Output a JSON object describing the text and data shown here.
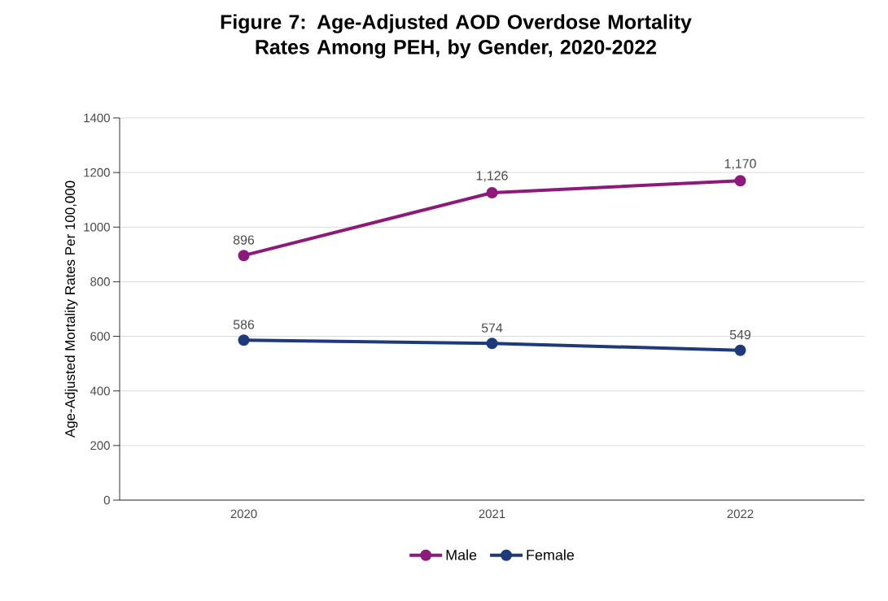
{
  "chart_data": {
    "type": "line",
    "title": "Figure 7: Age-Adjusted AOD Overdose Mortality Rates Among PEH, by Gender, 2020-2022",
    "ylabel": "Age-Adjusted Mortality Rates Per 100,000",
    "categories": [
      "2020",
      "2021",
      "2022"
    ],
    "series": [
      {
        "name": "Male",
        "color": "#8b1a7a",
        "values": [
          896,
          1126,
          1170
        ],
        "value_labels": [
          "896",
          "1,126",
          "1,170"
        ]
      },
      {
        "name": "Female",
        "color": "#1f3a7a",
        "values": [
          586,
          574,
          549
        ],
        "value_labels": [
          "586",
          "574",
          "549"
        ]
      }
    ],
    "ylim": [
      0,
      1400
    ],
    "yticks": [
      0,
      200,
      400,
      600,
      800,
      1000,
      1200,
      1400
    ],
    "grid": "y",
    "legend": "bottom",
    "marker": "circle",
    "line_style": "solid"
  }
}
